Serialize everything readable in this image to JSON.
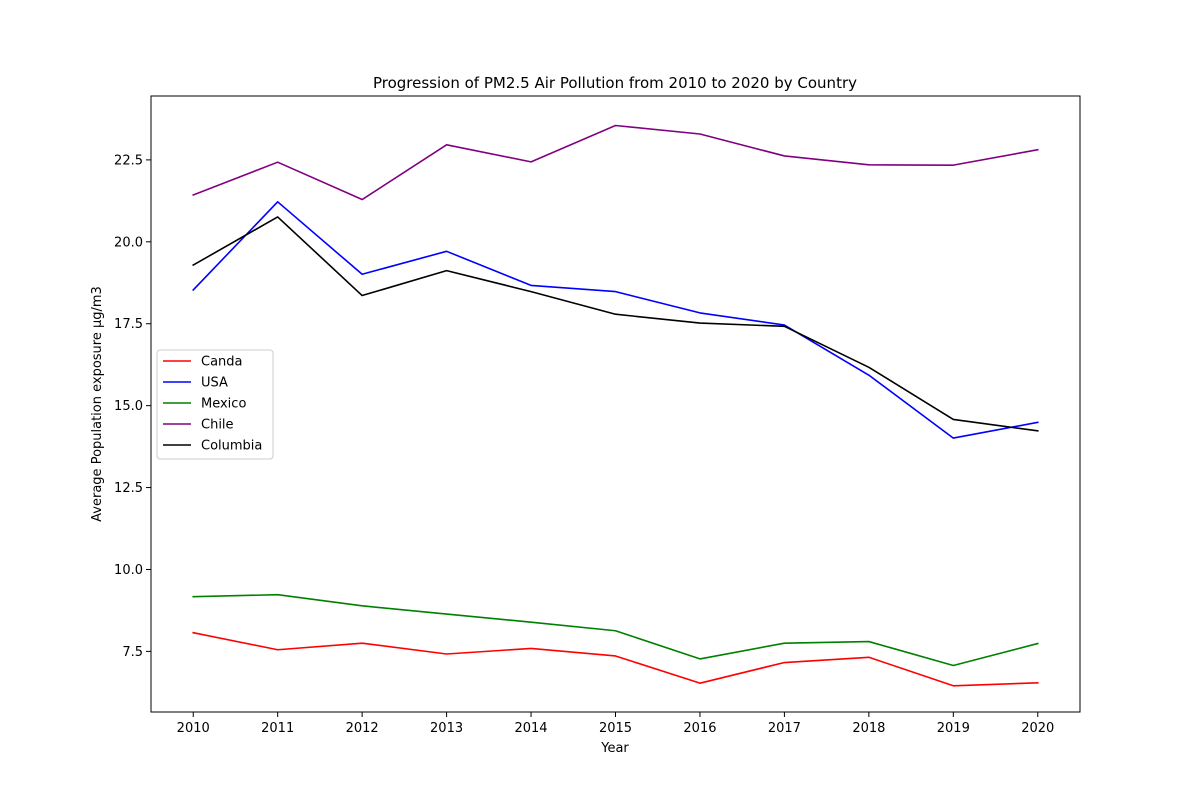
{
  "chart_data": {
    "type": "line",
    "title": "Progression of PM2.5 Air Pollution from 2010 to 2020 by Country",
    "xlabel": "Year",
    "ylabel": "Average Population exposure µg/m3",
    "x": [
      2010,
      2011,
      2012,
      2013,
      2014,
      2015,
      2016,
      2017,
      2018,
      2019,
      2020
    ],
    "xlim": [
      2009.5,
      2020.5
    ],
    "ylim": [
      5.65,
      24.45
    ],
    "yticks": [
      7.5,
      10.0,
      12.5,
      15.0,
      17.5,
      20.0,
      22.5
    ],
    "ytick_labels": [
      "7.5",
      "10.0",
      "12.5",
      "15.0",
      "17.5",
      "20.0",
      "22.5"
    ],
    "grid": false,
    "legend_position": "center-left",
    "series": [
      {
        "name": "Canda",
        "color": "#ff0000",
        "values": [
          8.07,
          7.55,
          7.75,
          7.42,
          7.59,
          7.36,
          6.53,
          7.16,
          7.32,
          6.45,
          6.54
        ]
      },
      {
        "name": "USA",
        "color": "#0000ff",
        "values": [
          18.53,
          21.22,
          19.01,
          19.71,
          18.67,
          18.48,
          17.83,
          17.46,
          15.93,
          14.01,
          14.49
        ]
      },
      {
        "name": "Mexico",
        "color": "#008000",
        "values": [
          9.17,
          9.23,
          8.89,
          8.64,
          8.39,
          8.13,
          7.27,
          7.75,
          7.8,
          7.07,
          7.74
        ]
      },
      {
        "name": "Chile",
        "color": "#800080",
        "values": [
          21.43,
          22.43,
          21.29,
          22.96,
          22.44,
          23.55,
          23.29,
          22.62,
          22.35,
          22.34,
          22.81
        ]
      },
      {
        "name": "Columbia",
        "color": "#000000",
        "values": [
          19.29,
          20.76,
          18.36,
          19.12,
          18.48,
          17.79,
          17.52,
          17.42,
          16.17,
          14.58,
          14.23
        ]
      }
    ]
  }
}
